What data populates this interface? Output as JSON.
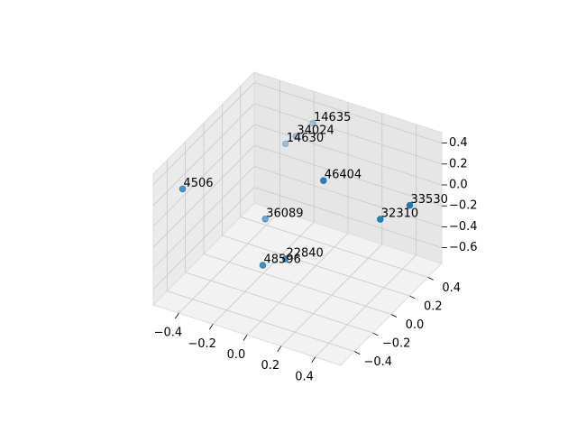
{
  "chart_data": {
    "type": "scatter3d",
    "color": "#1f77b4",
    "grid": true,
    "series": [
      {
        "x": [
          -0.12,
          -0.17,
          -0.21,
          0.12,
          -0.47,
          -0.2,
          0.47,
          0.34,
          -0.05,
          -0.15
        ],
        "y": [
          0.39,
          0.3,
          0.26,
          0.06,
          -0.38,
          0.02,
          0.35,
          0.27,
          -0.04,
          -0.1
        ],
        "z": [
          0.38,
          0.31,
          0.25,
          0.25,
          0.25,
          -0.25,
          -0.06,
          -0.19,
          -0.5,
          -0.56
        ],
        "point_labels": [
          "14635",
          "34024",
          "14630",
          "46404",
          "4506",
          "36089",
          "33530",
          "32310",
          "22840",
          "48596"
        ]
      }
    ],
    "xlim": [
      -0.55,
      0.55
    ],
    "ylim": [
      -0.55,
      0.55
    ],
    "zlim": [
      -0.75,
      0.5
    ],
    "xticks": [
      {
        "value": -0.4,
        "label": "−0.4"
      },
      {
        "value": -0.2,
        "label": "−0.2"
      },
      {
        "value": 0,
        "label": "0.0"
      },
      0.2,
      0.4
    ],
    "yticks": [
      {
        "value": -0.4,
        "label": "−0.4"
      },
      {
        "value": -0.2,
        "label": "−0.2"
      },
      {
        "value": 0,
        "label": "0.0"
      },
      0.2,
      0.4
    ],
    "zticks": [
      {
        "value": -0.6,
        "label": "−0.6"
      },
      {
        "value": -0.4,
        "label": "−0.4"
      },
      {
        "value": -0.2,
        "label": "−0.2"
      },
      {
        "value": 0,
        "label": "0.0"
      },
      0.2,
      0.4
    ]
  }
}
